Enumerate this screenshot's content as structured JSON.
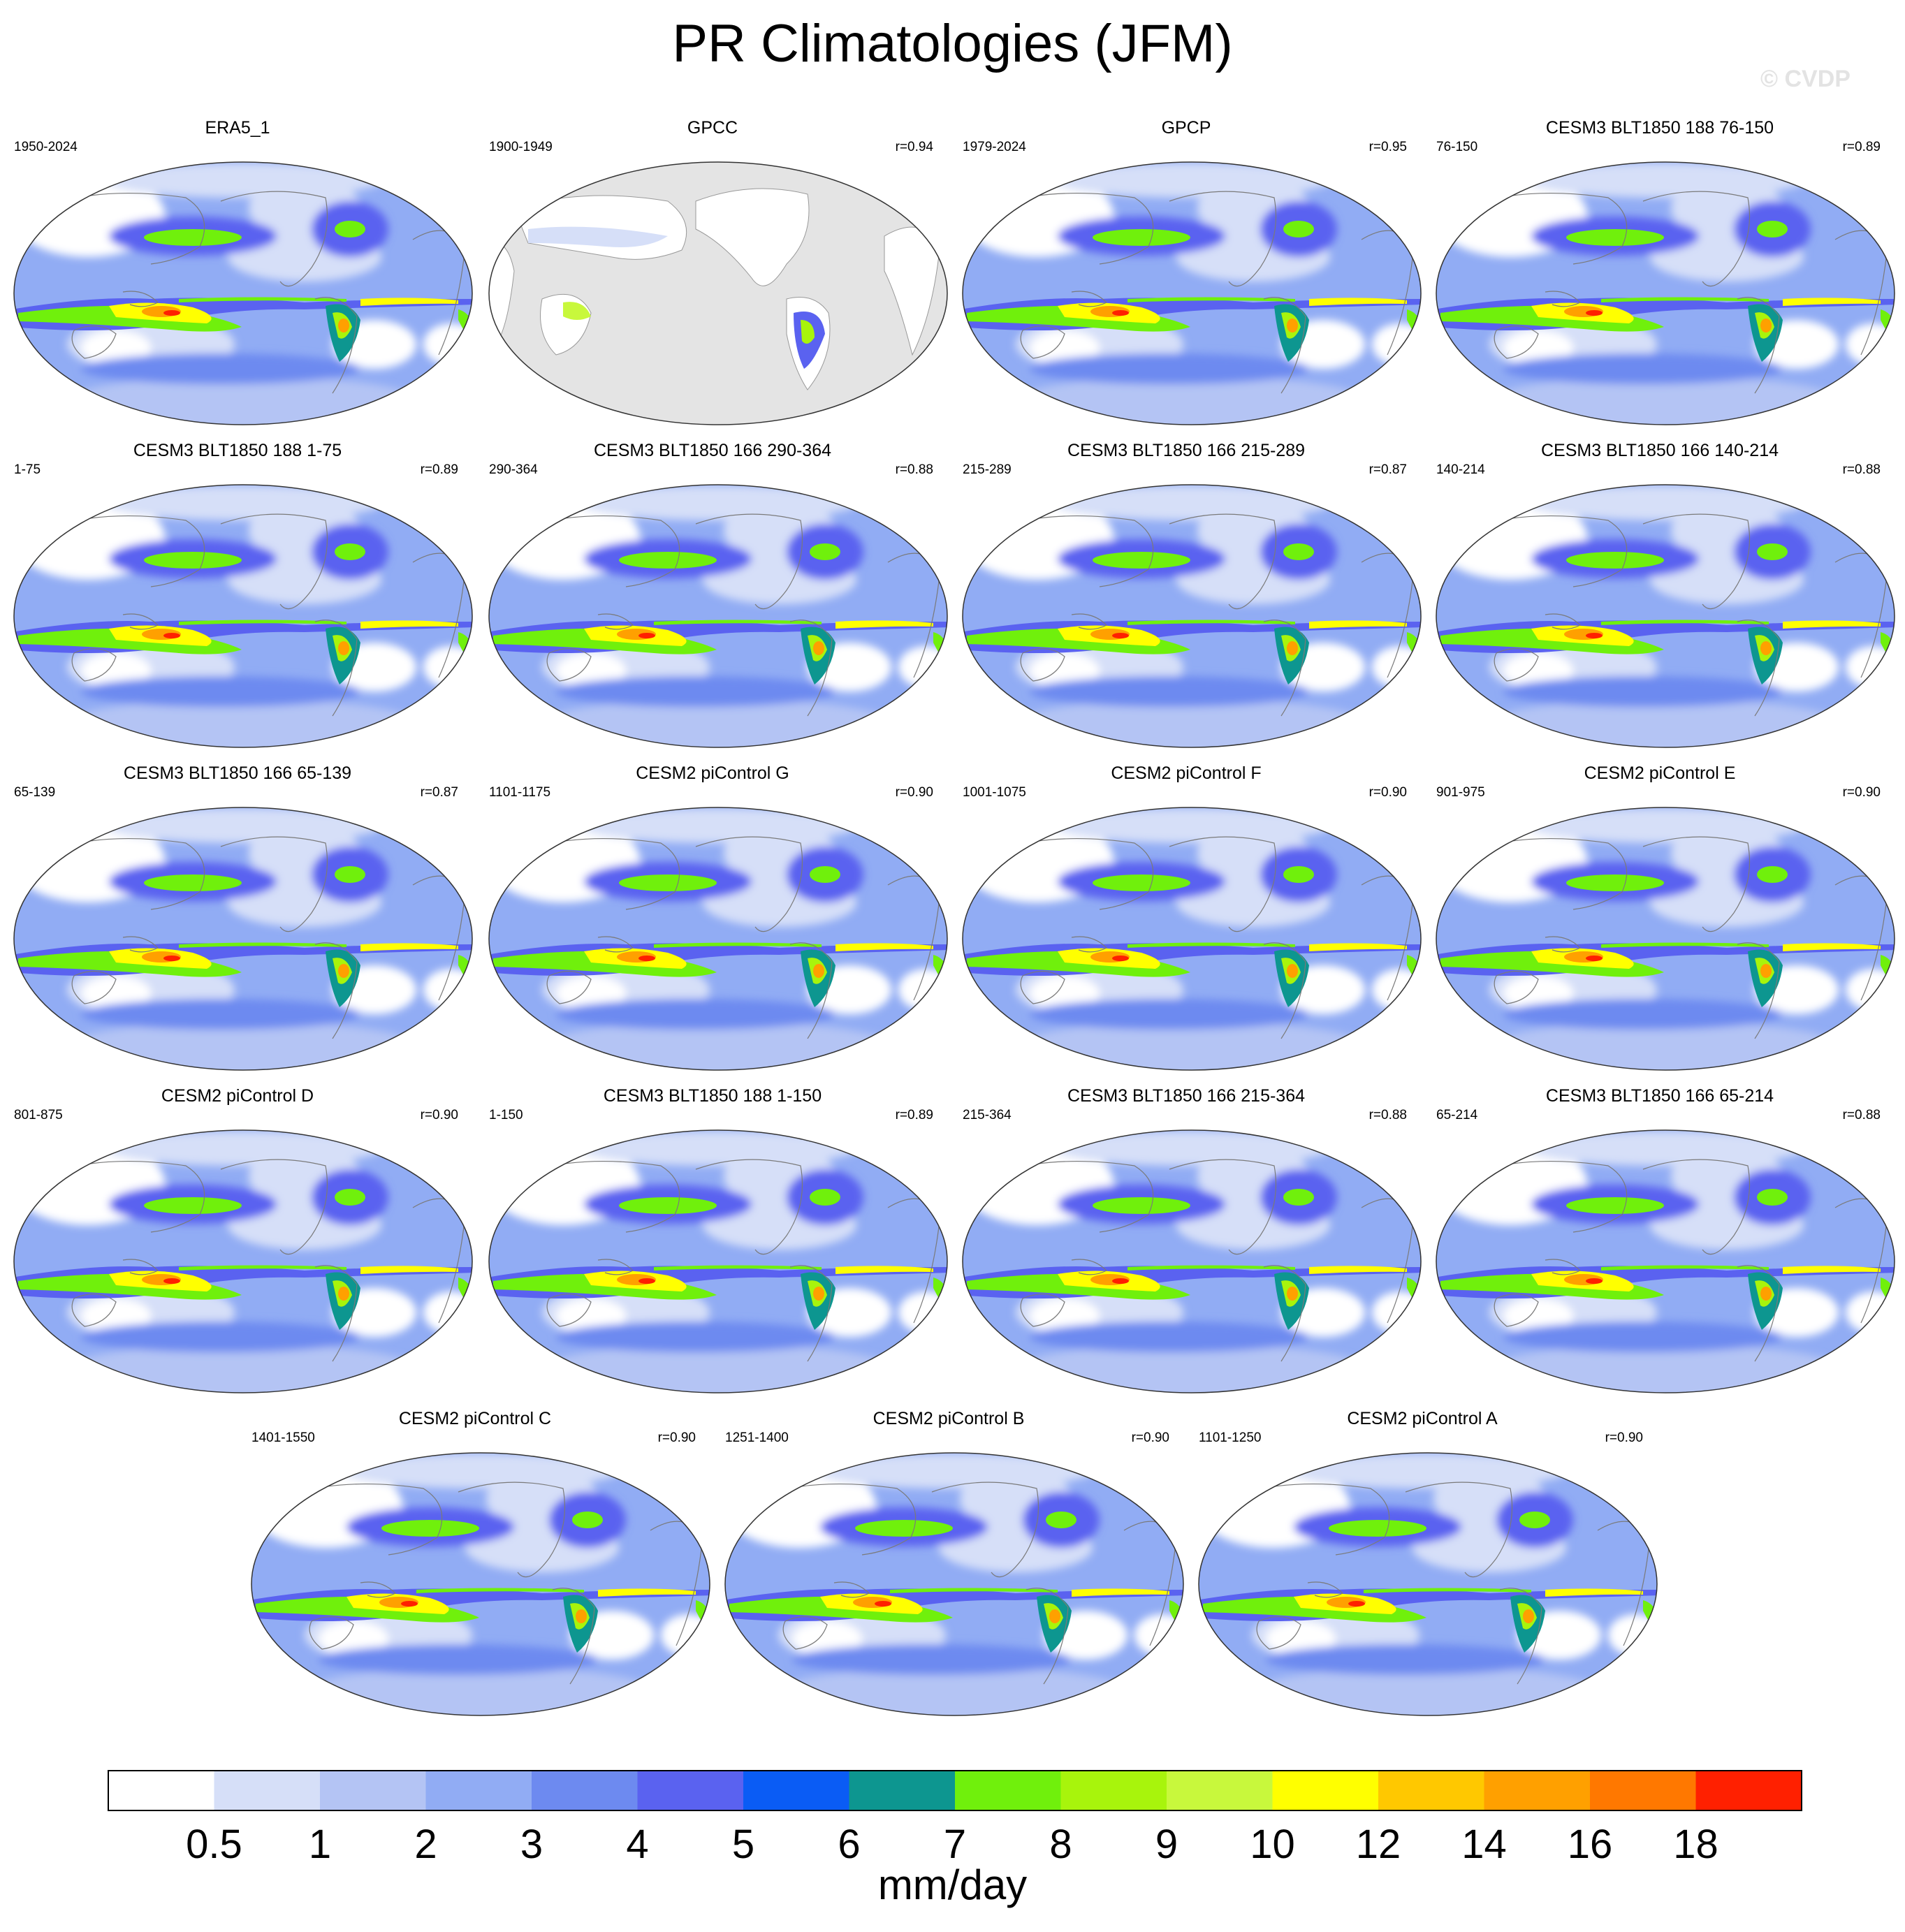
{
  "title": "PR Climatologies (JFM)",
  "watermark": "© CVDP",
  "panels": [
    {
      "name": "ERA5_1",
      "years": "1950-2024",
      "r": "",
      "style": "reference"
    },
    {
      "name": "GPCC",
      "years": "1900-1949",
      "r": "r=0.94",
      "style": "land-only"
    },
    {
      "name": "GPCP",
      "years": "1979-2024",
      "r": "r=0.95",
      "style": "reference"
    },
    {
      "name": "CESM3 BLT1850 188 76-150",
      "years": "76-150",
      "r": "r=0.89",
      "style": "model"
    },
    {
      "name": "CESM3 BLT1850 188 1-75",
      "years": "1-75",
      "r": "r=0.89",
      "style": "model"
    },
    {
      "name": "CESM3 BLT1850 166 290-364",
      "years": "290-364",
      "r": "r=0.88",
      "style": "model"
    },
    {
      "name": "CESM3 BLT1850 166 215-289",
      "years": "215-289",
      "r": "r=0.87",
      "style": "model"
    },
    {
      "name": "CESM3 BLT1850 166 140-214",
      "years": "140-214",
      "r": "r=0.88",
      "style": "model"
    },
    {
      "name": "CESM3 BLT1850 166 65-139",
      "years": "65-139",
      "r": "r=0.87",
      "style": "model"
    },
    {
      "name": "CESM2 piControl G",
      "years": "1101-1175",
      "r": "r=0.90",
      "style": "model"
    },
    {
      "name": "CESM2 piControl F",
      "years": "1001-1075",
      "r": "r=0.90",
      "style": "model"
    },
    {
      "name": "CESM2 piControl E",
      "years": "901-975",
      "r": "r=0.90",
      "style": "model"
    },
    {
      "name": "CESM2 piControl D",
      "years": "801-875",
      "r": "r=0.90",
      "style": "model"
    },
    {
      "name": "CESM3 BLT1850 188 1-150",
      "years": "1-150",
      "r": "r=0.89",
      "style": "model"
    },
    {
      "name": "CESM3 BLT1850 166 215-364",
      "years": "215-364",
      "r": "r=0.88",
      "style": "model"
    },
    {
      "name": "CESM3 BLT1850 166 65-214",
      "years": "65-214",
      "r": "r=0.88",
      "style": "model"
    },
    {
      "name": "CESM2 piControl C",
      "years": "1401-1550",
      "r": "r=0.90",
      "style": "model"
    },
    {
      "name": "CESM2 piControl B",
      "years": "1251-1400",
      "r": "r=0.90",
      "style": "model"
    },
    {
      "name": "CESM2 piControl A",
      "years": "1101-1250",
      "r": "r=0.90",
      "style": "model"
    }
  ],
  "colorbar": {
    "unit": "mm/day",
    "tick_labels": [
      "0.5",
      "1",
      "2",
      "3",
      "4",
      "5",
      "6",
      "7",
      "8",
      "9",
      "10",
      "12",
      "14",
      "16",
      "18"
    ],
    "colors": [
      "#ffffff",
      "#d6dff8",
      "#b4c4f4",
      "#91acf4",
      "#6d8af0",
      "#5a62f0",
      "#0a5cf5",
      "#0d9690",
      "#70f00c",
      "#a8f40c",
      "#c8f83c",
      "#ffff00",
      "#ffc800",
      "#ffa000",
      "#ff7800",
      "#ff2000"
    ]
  }
}
